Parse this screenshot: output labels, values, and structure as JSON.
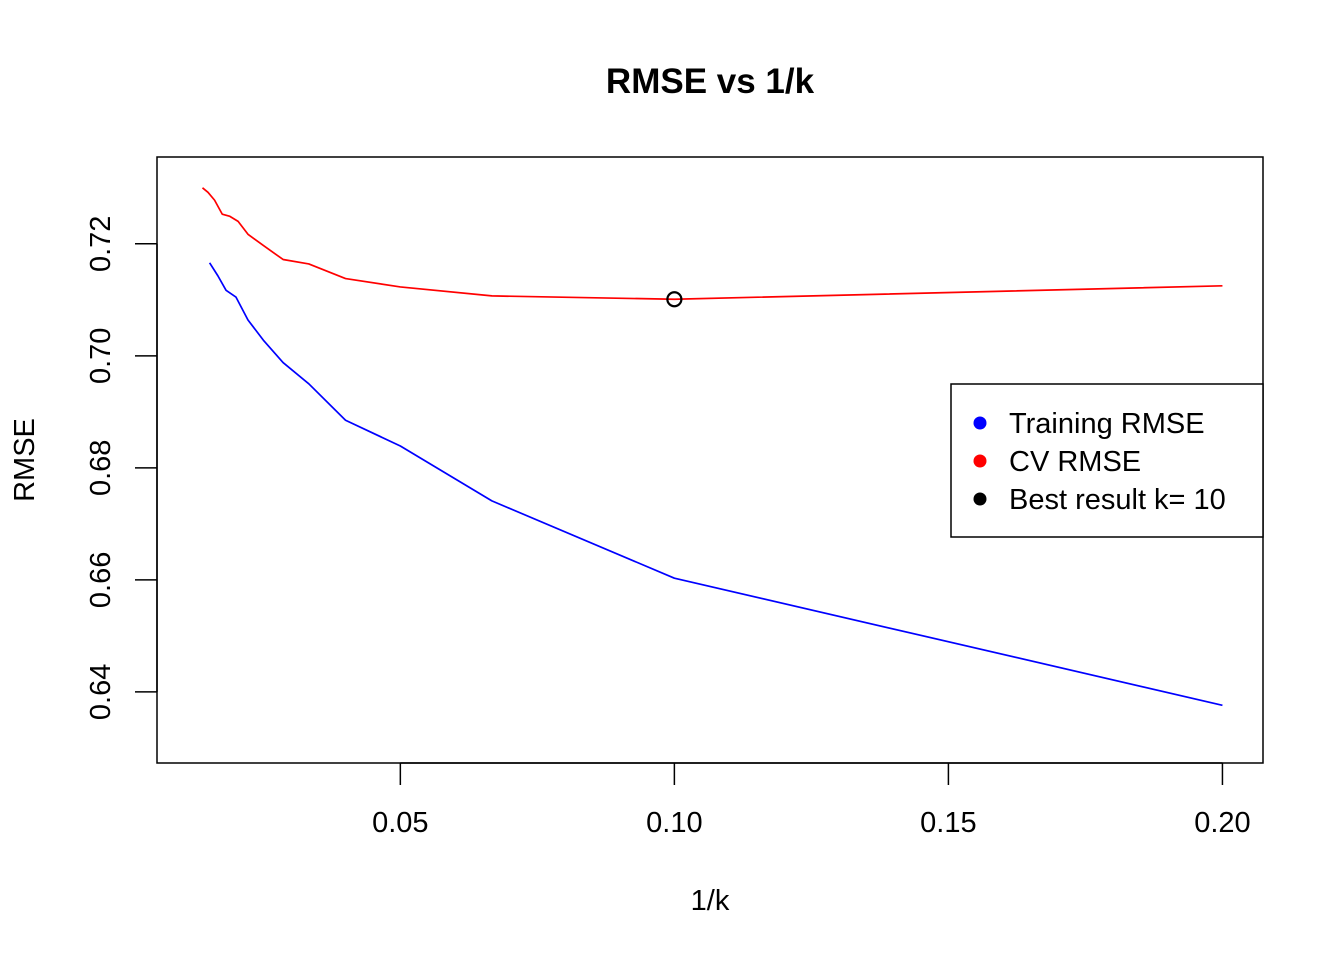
{
  "chart_data": {
    "type": "line",
    "title": "RMSE vs 1/k",
    "xlabel": "1/k",
    "ylabel": "RMSE",
    "xlim": [
      0.0056,
      0.2074
    ],
    "ylim": [
      0.6273,
      0.7355
    ],
    "x_ticks": [
      0.05,
      0.1,
      0.15,
      0.2
    ],
    "x_tick_labels": [
      "0.05",
      "0.10",
      "0.15",
      "0.20"
    ],
    "y_ticks": [
      0.64,
      0.66,
      0.68,
      0.7,
      0.72
    ],
    "y_tick_labels": [
      "0.64",
      "0.66",
      "0.68",
      "0.70",
      "0.72"
    ],
    "grid": false,
    "legend_position": "right",
    "series": [
      {
        "name": "Training RMSE",
        "color": "#0000ff",
        "x": [
          0.0152,
          0.0167,
          0.0182,
          0.02,
          0.0222,
          0.025,
          0.0286,
          0.0333,
          0.04,
          0.05,
          0.0667,
          0.1,
          0.2
        ],
        "y": [
          0.7166,
          0.7143,
          0.7117,
          0.7105,
          0.7064,
          0.7028,
          0.6988,
          0.695,
          0.6885,
          0.6839,
          0.6741,
          0.6603,
          0.6376
        ]
      },
      {
        "name": "CV RMSE",
        "color": "#ff0000",
        "x": [
          0.0139,
          0.0149,
          0.0161,
          0.0175,
          0.0189,
          0.0204,
          0.0222,
          0.025,
          0.0286,
          0.0333,
          0.04,
          0.05,
          0.0667,
          0.1,
          0.2
        ],
        "y": [
          0.73,
          0.7292,
          0.7278,
          0.7253,
          0.7249,
          0.724,
          0.7217,
          0.7197,
          0.7172,
          0.7164,
          0.7138,
          0.7123,
          0.7107,
          0.7101,
          0.7125
        ]
      }
    ],
    "best_point": {
      "name": "Best result k= 10",
      "color": "#000000",
      "x": 0.1,
      "y": 0.7101,
      "marker_label": "o"
    },
    "legend": [
      {
        "label": "Training RMSE",
        "color": "#0000ff"
      },
      {
        "label": "CV RMSE",
        "color": "#ff0000"
      },
      {
        "label": "Best result k= 10",
        "color": "#000000"
      }
    ]
  }
}
